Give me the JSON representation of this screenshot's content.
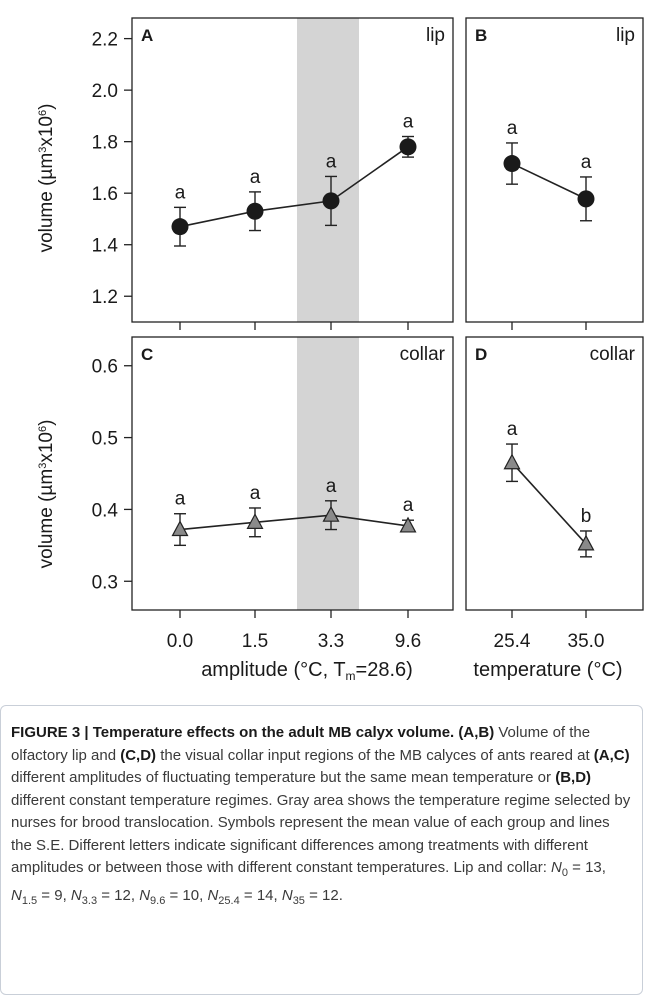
{
  "figure": {
    "y_axis_label": "volume (µm³x10⁶)",
    "x_axis_label_left": "amplitude (°C, T",
    "x_axis_label_left_sub": "m",
    "x_axis_label_left_tail": "=28.6)",
    "x_axis_label_right": "temperature (°C)",
    "shade_color": "#d4d4d4"
  },
  "chart_data": [
    {
      "panel": "A",
      "corner_label": "lip",
      "type": "line",
      "marker": "circle",
      "x_tick_labels": [
        "0.0",
        "1.5",
        "3.3",
        "9.6"
      ],
      "y_ticks": [
        "1.2",
        "1.4",
        "1.6",
        "1.8",
        "2.0",
        "2.2"
      ],
      "ylim": [
        1.1,
        2.28
      ],
      "shaded_category": "3.3",
      "values": [
        1.47,
        1.53,
        1.57,
        1.78
      ],
      "se": [
        0.075,
        0.075,
        0.095,
        0.04
      ],
      "letters": [
        "a",
        "a",
        "a",
        "a"
      ]
    },
    {
      "panel": "B",
      "corner_label": "lip",
      "type": "line",
      "marker": "circle",
      "x_tick_labels": [
        "25.4",
        "35.0"
      ],
      "ylim": [
        1.1,
        2.28
      ],
      "values": [
        1.715,
        1.578
      ],
      "se": [
        0.08,
        0.085
      ],
      "letters": [
        "a",
        "a"
      ]
    },
    {
      "panel": "C",
      "corner_label": "collar",
      "type": "line",
      "marker": "triangle",
      "x_tick_labels": [
        "0.0",
        "1.5",
        "3.3",
        "9.6"
      ],
      "y_ticks": [
        "0.3",
        "0.4",
        "0.5",
        "0.6"
      ],
      "ylim": [
        0.26,
        0.64
      ],
      "shaded_category": "3.3",
      "values": [
        0.372,
        0.382,
        0.392,
        0.377
      ],
      "se": [
        0.022,
        0.02,
        0.02,
        0.008
      ],
      "letters": [
        "a",
        "a",
        "a",
        "a"
      ]
    },
    {
      "panel": "D",
      "corner_label": "collar",
      "type": "line",
      "marker": "triangle",
      "x_tick_labels": [
        "25.4",
        "35.0"
      ],
      "ylim": [
        0.26,
        0.64
      ],
      "values": [
        0.465,
        0.352
      ],
      "se": [
        0.026,
        0.018
      ],
      "letters": [
        "a",
        "b"
      ]
    }
  ],
  "caption": {
    "figure_number": "Figure 3 |",
    "title": "Temperature effects on the adult MB calyx volume. (A,B)",
    "body": [
      {
        "t": "Volume of the olfactory lip and "
      },
      {
        "t": "(C,D)",
        "b": true
      },
      {
        "t": " the visual collar input regions of the MB calyces of ants reared at "
      },
      {
        "t": "(A,C)",
        "b": true
      },
      {
        "t": " different amplitudes of fluctuating temperature but the same mean temperature or "
      },
      {
        "t": "(B,D)",
        "b": true
      },
      {
        "t": " different constant temperature regimes. Gray area shows the temperature regime selected by nurses for brood translocation. Symbols represent the mean value of each group and lines the S.E. Different letters indicate significant differences among treatments with different amplitudes or between those with different constant temperatures. Lip and collar: "
      }
    ],
    "sample_sizes": [
      {
        "sub": "0",
        "val": "13"
      },
      {
        "sub": "1.5",
        "val": "9"
      },
      {
        "sub": "3.3",
        "val": "12"
      },
      {
        "sub": "9.6",
        "val": "10"
      },
      {
        "sub": "25.4",
        "val": "14"
      },
      {
        "sub": "35",
        "val": "12"
      }
    ]
  }
}
